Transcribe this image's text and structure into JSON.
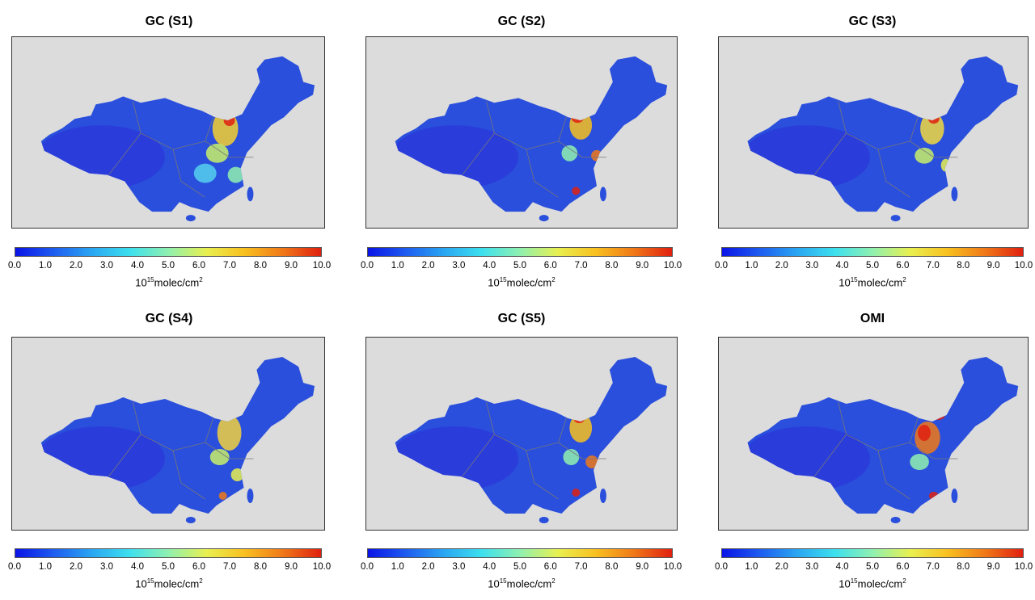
{
  "colorbar": {
    "ticks": [
      "0.0",
      "1.0",
      "2.0",
      "3.0",
      "4.0",
      "5.0",
      "6.0",
      "7.0",
      "8.0",
      "9.0",
      "10.0"
    ],
    "unit_base": "10",
    "unit_exp": "15",
    "unit_text": "molec/cm",
    "unit_sup2": "2",
    "colors": [
      "#0a14e6",
      "#1e5cf0",
      "#2aa6f2",
      "#3de0ee",
      "#8ff0b0",
      "#e8f050",
      "#f8c020",
      "#f07818",
      "#e02010"
    ]
  },
  "map_colors": {
    "ocean": "#dcdcdc",
    "land": "#2a4fdc",
    "west": "#2b36d8",
    "border": "#777777"
  },
  "panels": [
    {
      "title": "GC (S1)"
    },
    {
      "title": "GC (S2)"
    },
    {
      "title": "GC (S3)"
    },
    {
      "title": "GC (S4)"
    },
    {
      "title": "GC (S5)"
    },
    {
      "title": "OMI"
    }
  ]
}
